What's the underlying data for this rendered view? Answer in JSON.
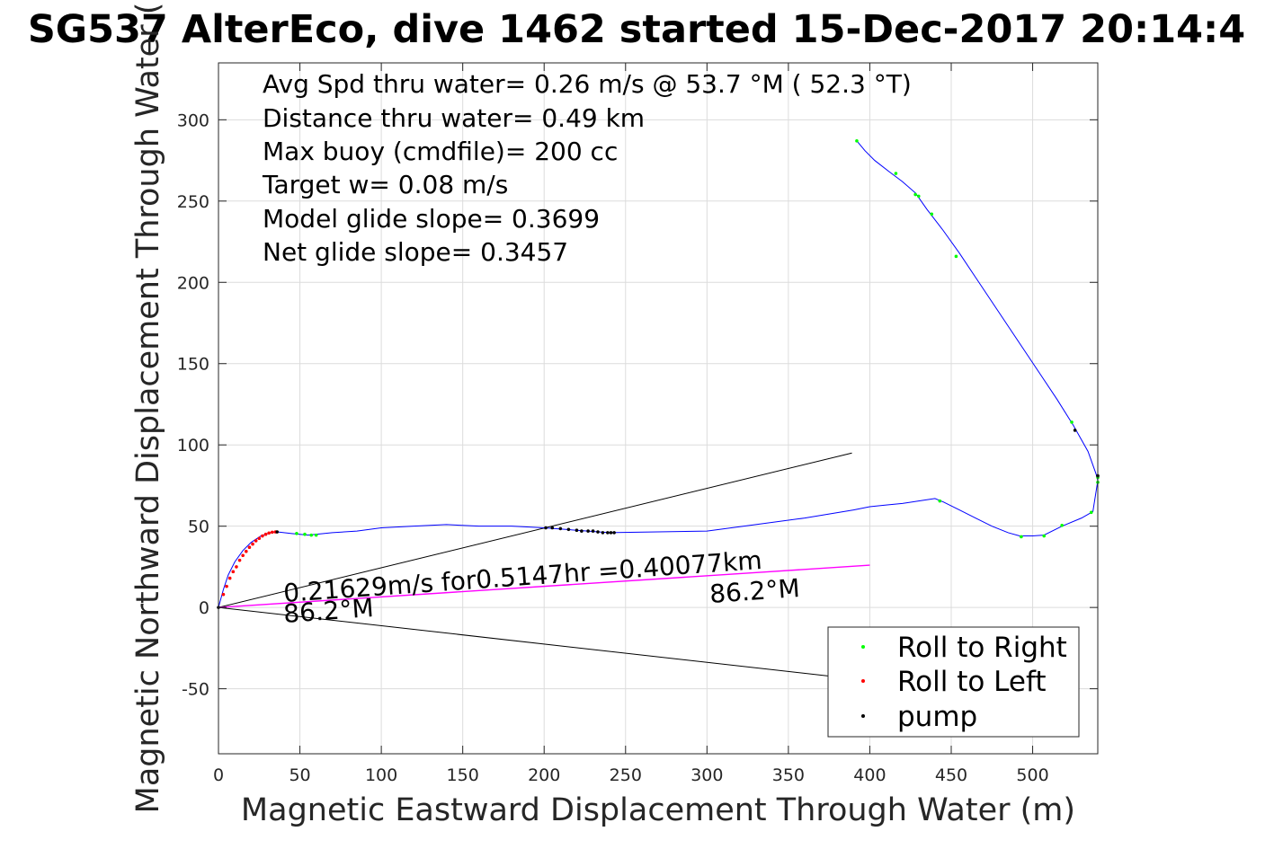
{
  "chart_data": {
    "type": "line",
    "title": "SG537 AlterEco, dive 1462 started 15-Dec-2017 20:14:4",
    "xlabel": "Magnetic Eastward Displacement Through Water (m)",
    "ylabel": "Magnetic Northward Displacement Through Water (",
    "xlim": [
      0,
      540
    ],
    "ylim": [
      -90,
      335
    ],
    "xticks": [
      0,
      50,
      100,
      150,
      200,
      250,
      300,
      350,
      400,
      450,
      500
    ],
    "yticks": [
      -50,
      0,
      50,
      100,
      150,
      200,
      250,
      300
    ],
    "grid": true,
    "annotations": [
      "Avg Spd thru water=  0.26 m/s @  53.7 °M ( 52.3 °T)",
      "Distance thru water=  0.49 km",
      "Max buoy (cmdfile)= 200 cc",
      "Target w= 0.08 m/s",
      "Model glide slope= 0.3699",
      "Net glide slope= 0.3457"
    ],
    "current_label": "0.21629m/s for0.5147hr =0.40077km",
    "heading_label_left": "86.2°M",
    "heading_label_right": "86.2°M",
    "track": {
      "x": [
        0,
        3,
        6,
        10,
        15,
        20,
        26,
        32,
        36,
        45,
        55,
        70,
        85,
        100,
        120,
        140,
        160,
        180,
        200,
        220,
        240,
        270,
        300,
        330,
        360,
        390,
        400,
        410,
        420,
        430,
        440,
        445,
        455,
        465,
        475,
        485,
        492,
        500,
        507,
        518,
        530,
        537,
        540,
        539,
        534,
        525,
        515,
        505,
        495,
        485,
        475,
        465,
        455,
        445,
        435,
        428,
        420,
        412,
        403,
        397,
        392
      ],
      "y": [
        0,
        11,
        20,
        28,
        35,
        40,
        44,
        46,
        46.5,
        45.5,
        44.5,
        46,
        47,
        49,
        50,
        51,
        50,
        50,
        49,
        47.5,
        46,
        46.5,
        47,
        51,
        55,
        60,
        62,
        63,
        64,
        65.5,
        67,
        65,
        60,
        55,
        50,
        46,
        44,
        44,
        44.5,
        50,
        55,
        59,
        78,
        82,
        96,
        112,
        128,
        143,
        158,
        173,
        188,
        203,
        218,
        232,
        245,
        255,
        262,
        268,
        275,
        281,
        287
      ]
    },
    "current_line": {
      "x": [
        0,
        400
      ],
      "y": [
        0,
        26
      ]
    },
    "envelope_lines": [
      {
        "x": [
          0,
          389
        ],
        "y": [
          0,
          95
        ]
      },
      {
        "x": [
          0,
          400
        ],
        "y": [
          0,
          -45
        ]
      }
    ],
    "roll_right": {
      "x": [
        48,
        53,
        57,
        60,
        443,
        493,
        507,
        518,
        536,
        540,
        540,
        524,
        453,
        438,
        430,
        428,
        416,
        392
      ],
      "y": [
        45.5,
        45,
        44.5,
        44.5,
        65.5,
        43.5,
        44,
        50.5,
        58.5,
        77,
        80,
        114,
        216,
        242,
        253,
        254,
        267,
        287
      ]
    },
    "roll_left": {
      "x": [
        3,
        5,
        7,
        9,
        11,
        13,
        15,
        17,
        19,
        21,
        23,
        25,
        27,
        29,
        31,
        33,
        35
      ],
      "y": [
        8,
        13,
        18,
        22,
        25,
        29,
        32,
        34.5,
        37,
        39,
        41,
        42.5,
        44,
        45,
        45.8,
        46.3,
        46.5
      ]
    },
    "pump": {
      "x": [
        0,
        36,
        201,
        205,
        210,
        215,
        220,
        223,
        227,
        230,
        233,
        236,
        239,
        241,
        243,
        526,
        540
      ],
      "y": [
        0,
        46.5,
        49,
        49,
        48.5,
        48,
        47.5,
        47,
        47,
        47,
        46.5,
        46,
        46,
        46,
        46,
        109,
        81
      ]
    },
    "legend": {
      "location": "bottom-right",
      "entries": [
        {
          "label": "Roll to Right",
          "color": "#00ff00"
        },
        {
          "label": "Roll to Left",
          "color": "#ff0000"
        },
        {
          "label": "pump",
          "color": "#000000"
        }
      ]
    },
    "colors": {
      "track": "#0000ff",
      "current_line": "#ff00ff",
      "envelope": "#000000",
      "grid": "#dcdcdc"
    }
  }
}
